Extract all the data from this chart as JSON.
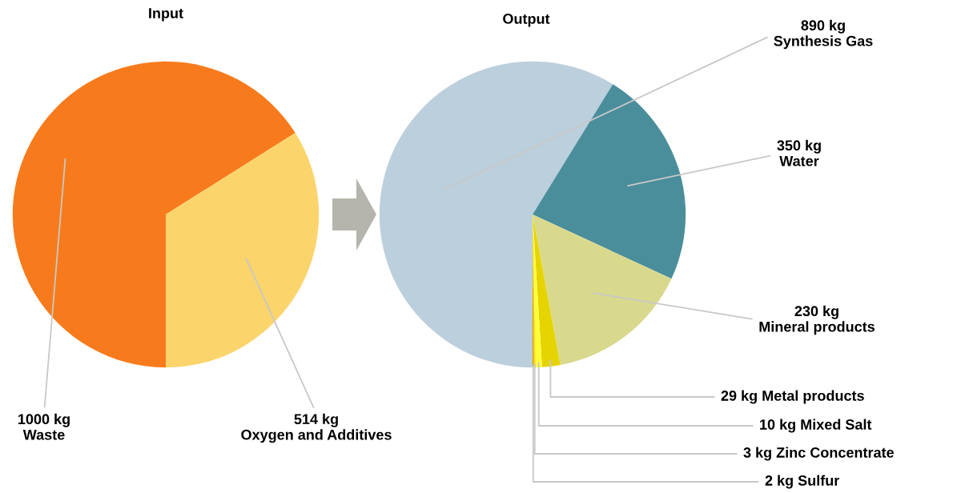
{
  "chart_data": [
    {
      "type": "pie",
      "title": "Input",
      "categories": [
        "Waste",
        "Oxygen and Additives"
      ],
      "values": [
        1000,
        514
      ],
      "colors": [
        "#f77b1c",
        "#fbd46c"
      ],
      "value_labels": [
        "1000 kg",
        "514 kg"
      ]
    },
    {
      "type": "pie",
      "title": "Output",
      "categories": [
        "Synthesis Gas",
        "Water",
        "Mineral products",
        "Metal products",
        "Mixed Salt",
        "Zinc Concentrate",
        "Sulfur"
      ],
      "values": [
        890,
        350,
        230,
        29,
        10,
        3,
        2
      ],
      "colors": [
        "#bccfdc",
        "#4a8e9c",
        "#d9d98e",
        "#e6d400",
        "#ffff3a",
        "#ffe000",
        "#e09a00"
      ],
      "value_labels": [
        "890 kg",
        "350 kg",
        "230 kg",
        "29 kg",
        "10 kg",
        "3 kg",
        "2 kg"
      ]
    }
  ]
}
